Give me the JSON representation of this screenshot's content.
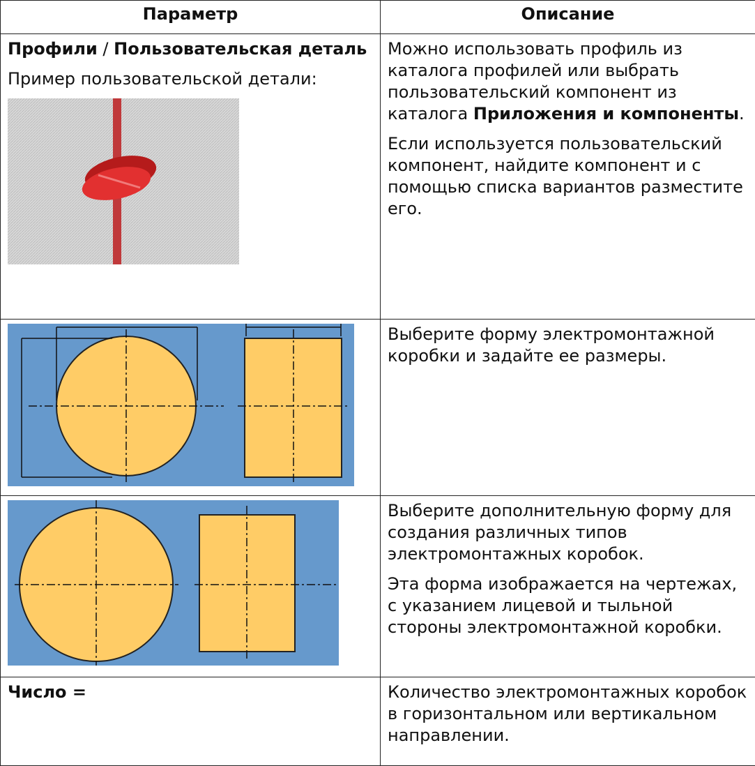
{
  "table": {
    "header": [
      "Параметр",
      "Описание"
    ],
    "rows": [
      {
        "parameter": {
          "title": [
            "Профили",
            "/",
            "Пользовательская деталь"
          ],
          "note": "Пример пользовательской детали:"
        },
        "description": [
          [
            "Можно использовать профиль из каталога профилей или выбрать пользовательский компонент из каталога",
            "Приложения и компоненты",
            "."
          ],
          [
            "Если используется пользовательский компонент, найдите компонент и с помощью списка вариантов разместите его."
          ]
        ]
      },
      {
        "description": [
          [
            "Выберите форму электромонтажной коробки и задайте ее размеры."
          ]
        ]
      },
      {
        "description": [
          [
            "Выберите дополнительную форму для создания различных типов электромонтажных коробок."
          ],
          [
            "Эта форма изображается на чертежах, с указанием лицевой и тыльной стороны электромонтажной коробки."
          ]
        ]
      },
      {
        "parameter": {
          "title": [
            "Число ="
          ]
        },
        "description": [
          [
            "Количество электромонтажных коробок в горизонтальном или вертикальном направлении."
          ]
        ]
      }
    ]
  }
}
